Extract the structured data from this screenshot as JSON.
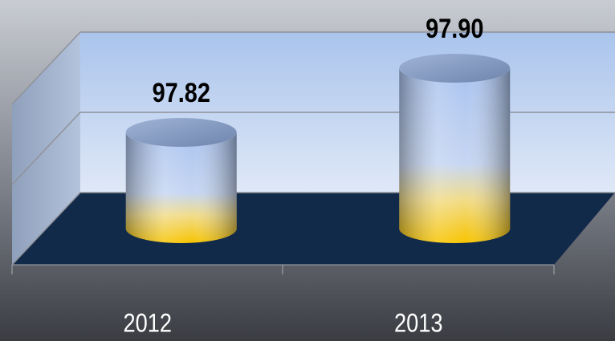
{
  "chart_data": {
    "type": "bar3d",
    "categories": [
      "2012",
      "2013"
    ],
    "values": [
      97.82,
      97.9
    ],
    "value_labels": [
      "97.82",
      "97.90"
    ],
    "ylim": [
      97.7,
      97.9
    ],
    "yticks": [
      97.7,
      97.8,
      97.9
    ],
    "grid": true
  }
}
